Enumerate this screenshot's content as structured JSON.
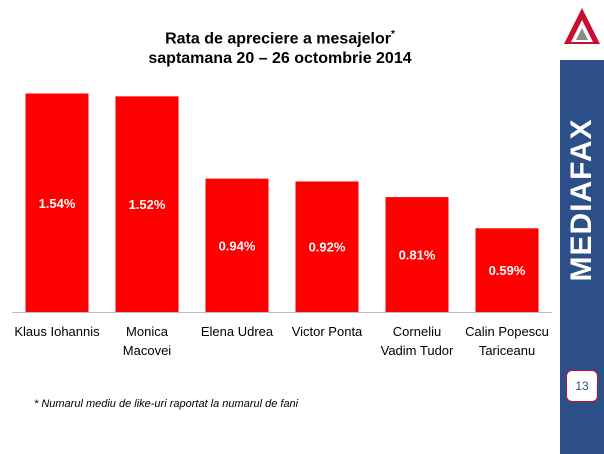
{
  "title_line1": "Rata de apreciere a mesajelor",
  "title_asterisk": "*",
  "title_line2": "saptamana 20 – 26 octombrie 2014",
  "footnote": "* Numarul mediu de like-uri raportat la numarul de fani",
  "brand": "MEDIAFAX",
  "page_number": "13",
  "colors": {
    "bar": "#ff0000",
    "panel": "#2c4f8a",
    "logo_red": "#c8102e"
  },
  "icons": {
    "logo": "mediafax-triangle-logo-icon"
  },
  "chart_data": {
    "type": "bar",
    "categories": [
      [
        "Klaus Iohannis"
      ],
      [
        "Monica",
        "Macovei"
      ],
      [
        "Elena Udrea"
      ],
      [
        "Victor Ponta"
      ],
      [
        "Corneliu",
        "Vadim Tudor"
      ],
      [
        "Calin Popescu",
        "Tariceanu"
      ]
    ],
    "values": [
      1.54,
      1.52,
      0.94,
      0.92,
      0.81,
      0.59
    ],
    "value_labels": [
      "1.54%",
      "1.52%",
      "0.94%",
      "0.92%",
      "0.81%",
      "0.59%"
    ],
    "ylim": [
      0,
      1.6
    ],
    "grid": false,
    "legend": "none"
  }
}
